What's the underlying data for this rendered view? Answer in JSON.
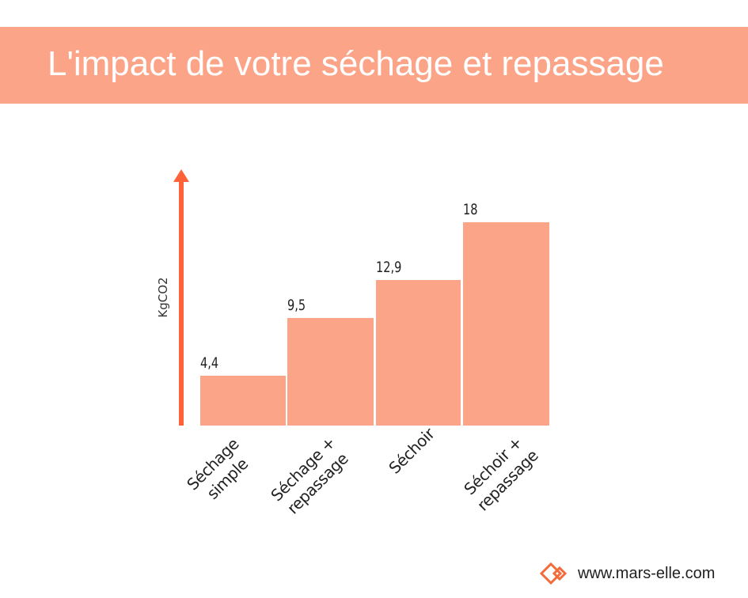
{
  "header": {
    "title": "L'impact de votre séchage et repassage"
  },
  "footer": {
    "website": "www.mars-elle.com",
    "logo_icon": "diamond-logo-icon"
  },
  "colors": {
    "banner": "#FBA488",
    "bar": "#FBA488",
    "axis_arrow": "#FF6238"
  },
  "chart_data": {
    "type": "bar",
    "title": "L'impact de votre séchage et repassage",
    "xlabel": "",
    "ylabel": "KgCO2",
    "categories": [
      "Séchage\nsimple",
      "Séchage +\nrepassage",
      "Séchoir",
      "Séchoir +\nrepassage"
    ],
    "values": [
      4.4,
      9.5,
      12.9,
      18
    ],
    "value_labels": [
      "4,4",
      "9,5",
      "12,9",
      "18"
    ],
    "ylim": [
      0,
      22
    ],
    "grid": false,
    "legend": "none"
  }
}
